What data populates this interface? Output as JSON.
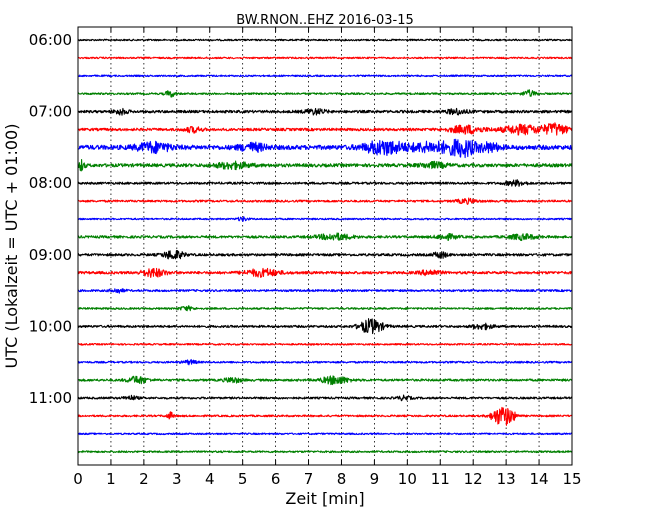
{
  "chart_data": {
    "type": "line",
    "title": "BW.RNON..EHZ 2016-03-15",
    "xlabel": "Zeit  [min]",
    "ylabel": "UTC (Lokalzeit = UTC + 01:00)",
    "xlim": [
      0,
      15
    ],
    "x_ticks": [
      "0",
      "1",
      "2",
      "3",
      "4",
      "5",
      "6",
      "7",
      "8",
      "9",
      "10",
      "11",
      "12",
      "13",
      "14",
      "15"
    ],
    "y_tick_labels": [
      "06:00",
      "07:00",
      "08:00",
      "09:00",
      "10:00",
      "11:00"
    ],
    "rows_per_hour": 4,
    "grid": "vertical dotted at each minute",
    "row_colors": [
      "#000000",
      "#ff0000",
      "#0000ff",
      "#008000"
    ],
    "rows": [
      {
        "start": "06:00",
        "amp": 0.8,
        "events": []
      },
      {
        "start": "06:15",
        "amp": 0.8,
        "events": []
      },
      {
        "start": "06:30",
        "amp": 0.8,
        "events": []
      },
      {
        "start": "06:45",
        "amp": 0.9,
        "events": [
          {
            "t": 2.8,
            "a": 3.0,
            "d": 0.15
          },
          {
            "t": 13.7,
            "a": 3.0,
            "d": 0.2
          }
        ]
      },
      {
        "start": "07:00",
        "amp": 1.3,
        "events": [
          {
            "t": 1.3,
            "a": 2.5,
            "d": 0.2
          },
          {
            "t": 7.2,
            "a": 2.5,
            "d": 0.3
          },
          {
            "t": 11.5,
            "a": 2.5,
            "d": 0.3
          }
        ]
      },
      {
        "start": "07:15",
        "amp": 1.3,
        "events": [
          {
            "t": 3.5,
            "a": 2.5,
            "d": 0.25
          },
          {
            "t": 11.8,
            "a": 4.0,
            "d": 0.5
          },
          {
            "t": 13.5,
            "a": 4.5,
            "d": 0.6
          },
          {
            "t": 14.5,
            "a": 5.5,
            "d": 0.35
          }
        ]
      },
      {
        "start": "07:30",
        "amp": 2.2,
        "events": [
          {
            "t": 2.3,
            "a": 4.5,
            "d": 0.5
          },
          {
            "t": 5.3,
            "a": 3.5,
            "d": 0.4
          },
          {
            "t": 9.3,
            "a": 6.5,
            "d": 0.6
          },
          {
            "t": 10.8,
            "a": 4.5,
            "d": 0.7
          },
          {
            "t": 11.7,
            "a": 7.5,
            "d": 0.4
          },
          {
            "t": 12.5,
            "a": 4.0,
            "d": 0.3
          }
        ]
      },
      {
        "start": "07:45",
        "amp": 1.6,
        "events": [
          {
            "t": 0.1,
            "a": 5.0,
            "d": 0.1
          },
          {
            "t": 4.7,
            "a": 3.0,
            "d": 0.5
          },
          {
            "t": 10.8,
            "a": 2.5,
            "d": 0.4
          }
        ]
      },
      {
        "start": "08:00",
        "amp": 1.1,
        "events": [
          {
            "t": 13.3,
            "a": 2.5,
            "d": 0.3
          }
        ]
      },
      {
        "start": "08:15",
        "amp": 1.0,
        "events": [
          {
            "t": 11.8,
            "a": 2.2,
            "d": 0.3
          }
        ]
      },
      {
        "start": "08:30",
        "amp": 0.8,
        "events": [
          {
            "t": 5.0,
            "a": 2.0,
            "d": 0.15
          }
        ]
      },
      {
        "start": "08:45",
        "amp": 1.2,
        "events": [
          {
            "t": 7.8,
            "a": 3.0,
            "d": 0.5
          },
          {
            "t": 11.2,
            "a": 2.5,
            "d": 0.3
          },
          {
            "t": 13.5,
            "a": 2.5,
            "d": 0.4
          }
        ]
      },
      {
        "start": "09:00",
        "amp": 1.2,
        "events": [
          {
            "t": 2.9,
            "a": 4.5,
            "d": 0.3
          },
          {
            "t": 11.0,
            "a": 3.0,
            "d": 0.2
          }
        ]
      },
      {
        "start": "09:15",
        "amp": 1.3,
        "events": [
          {
            "t": 2.3,
            "a": 4.0,
            "d": 0.35
          },
          {
            "t": 5.6,
            "a": 3.5,
            "d": 0.5
          },
          {
            "t": 10.7,
            "a": 2.5,
            "d": 0.3
          }
        ]
      },
      {
        "start": "09:30",
        "amp": 1.0,
        "events": [
          {
            "t": 1.2,
            "a": 2.0,
            "d": 0.2
          }
        ]
      },
      {
        "start": "09:45",
        "amp": 0.9,
        "events": [
          {
            "t": 3.3,
            "a": 2.0,
            "d": 0.2
          }
        ]
      },
      {
        "start": "10:00",
        "amp": 1.1,
        "events": [
          {
            "t": 8.9,
            "a": 7.0,
            "d": 0.35
          },
          {
            "t": 12.3,
            "a": 2.5,
            "d": 0.3
          }
        ]
      },
      {
        "start": "10:15",
        "amp": 0.8,
        "events": []
      },
      {
        "start": "10:30",
        "amp": 0.9,
        "events": [
          {
            "t": 3.4,
            "a": 2.0,
            "d": 0.2
          }
        ]
      },
      {
        "start": "10:45",
        "amp": 1.1,
        "events": [
          {
            "t": 1.8,
            "a": 3.5,
            "d": 0.3
          },
          {
            "t": 4.7,
            "a": 2.5,
            "d": 0.25
          },
          {
            "t": 7.8,
            "a": 4.0,
            "d": 0.4
          }
        ]
      },
      {
        "start": "11:00",
        "amp": 1.0,
        "events": [
          {
            "t": 1.6,
            "a": 2.0,
            "d": 0.2
          },
          {
            "t": 9.9,
            "a": 2.0,
            "d": 0.2
          }
        ]
      },
      {
        "start": "11:15",
        "amp": 0.9,
        "events": [
          {
            "t": 2.8,
            "a": 3.5,
            "d": 0.1
          },
          {
            "t": 12.8,
            "a": 8.0,
            "d": 0.25
          },
          {
            "t": 13.1,
            "a": 6.0,
            "d": 0.2
          }
        ]
      },
      {
        "start": "11:30",
        "amp": 0.8,
        "events": []
      },
      {
        "start": "11:45",
        "amp": 0.9,
        "events": []
      }
    ]
  }
}
